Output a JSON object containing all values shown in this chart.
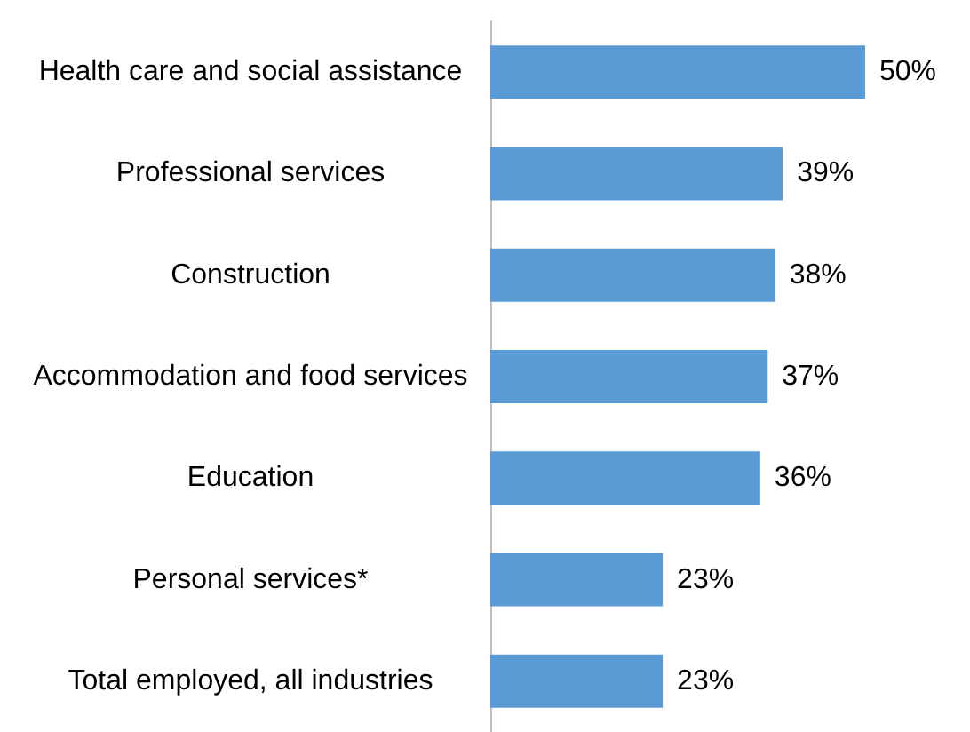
{
  "chart_data": {
    "type": "bar",
    "orientation": "horizontal",
    "categories": [
      "Health care and social assistance",
      "Professional services",
      "Construction",
      "Accommodation and food services",
      "Education",
      "Personal services*",
      "Total employed, all industries"
    ],
    "values": [
      50,
      39,
      38,
      37,
      36,
      23,
      23
    ],
    "value_labels": [
      "50%",
      "39%",
      "38%",
      "37%",
      "36%",
      "23%",
      "23%"
    ],
    "color": "#5b9bd5",
    "grid": false
  }
}
